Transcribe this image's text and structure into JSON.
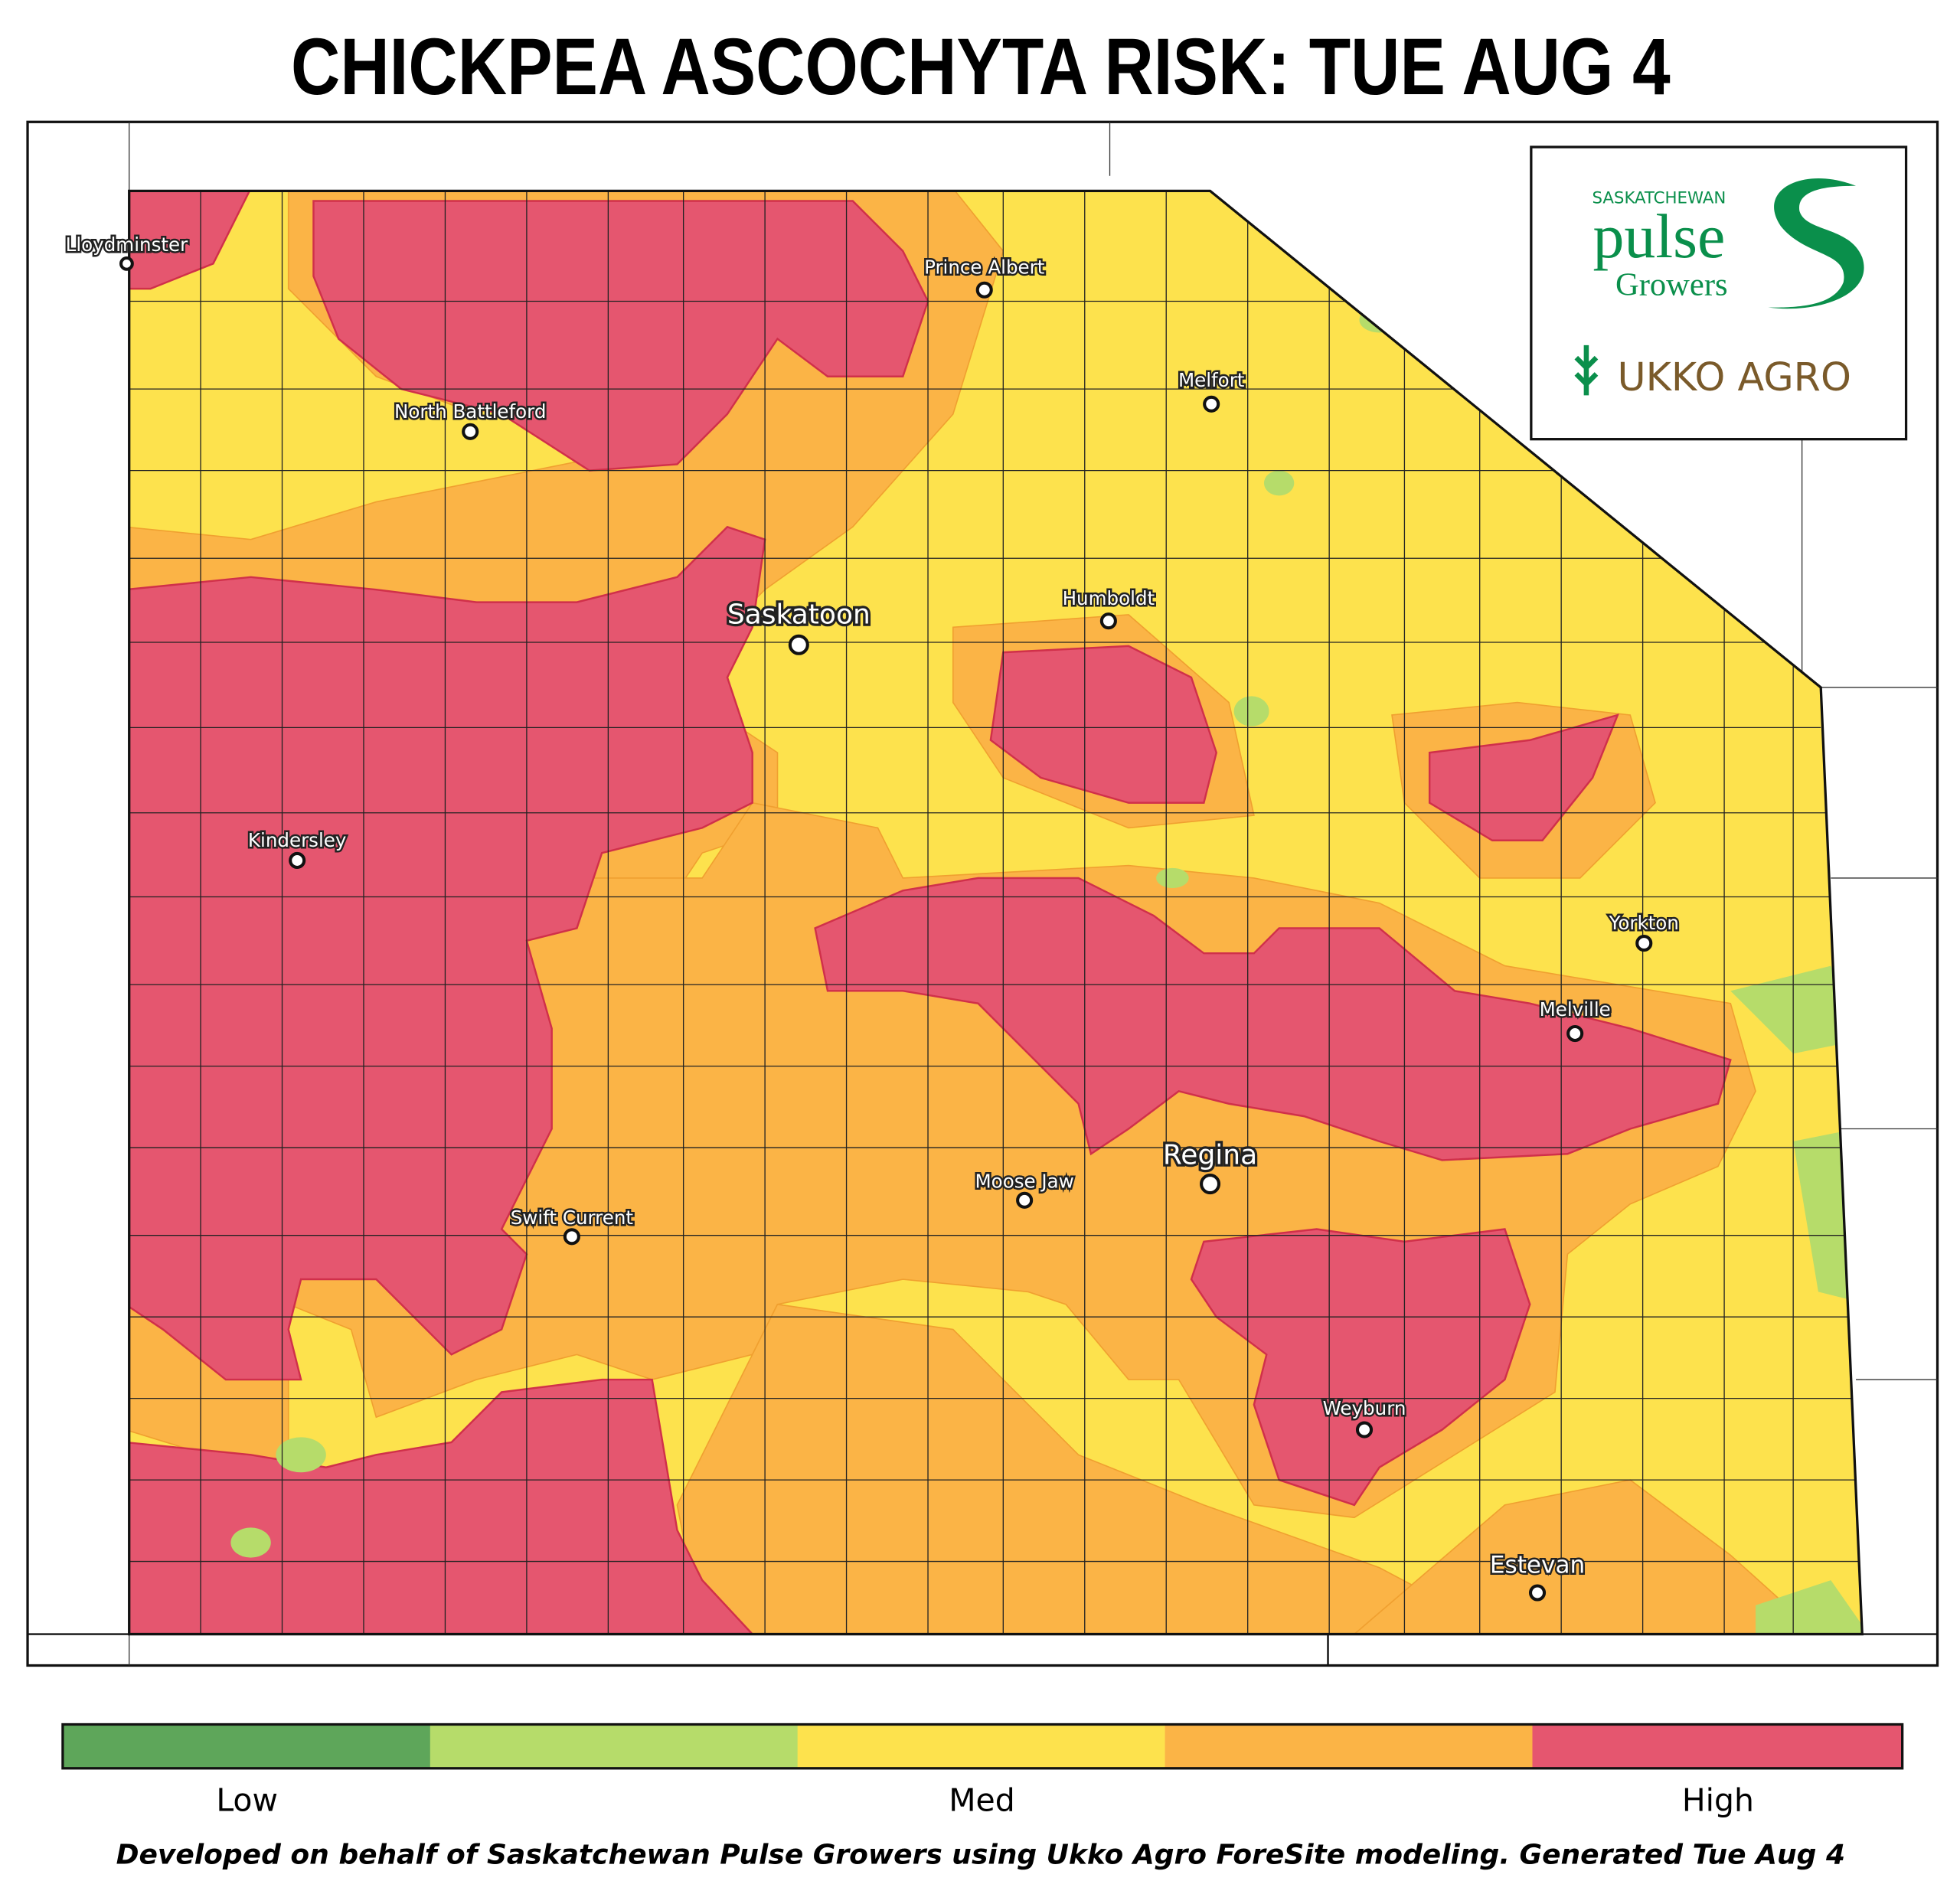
{
  "title": "CHICKPEA ASCOCHYTA RISK: TUE AUG 4",
  "logo": {
    "org_top": "SASKATCHEWAN",
    "org_main": "pulse",
    "org_sub": "Growers",
    "partner": "UKKO AGRO"
  },
  "cities": [
    "Lloydminster",
    "Prince Albert",
    "Melfort",
    "North Battleford",
    "Saskatoon",
    "Humboldt",
    "Kindersley",
    "Yorkton",
    "Melville",
    "Regina",
    "Moose Jaw",
    "Swift Current",
    "Weyburn",
    "Estevan"
  ],
  "legend": {
    "labels": [
      "Low",
      "Med",
      "High"
    ]
  },
  "footer": "Developed on behalf of Saskatchewan Pulse Growers using Ukko Agro ForeSite modeling. Generated Tue Aug 4"
}
